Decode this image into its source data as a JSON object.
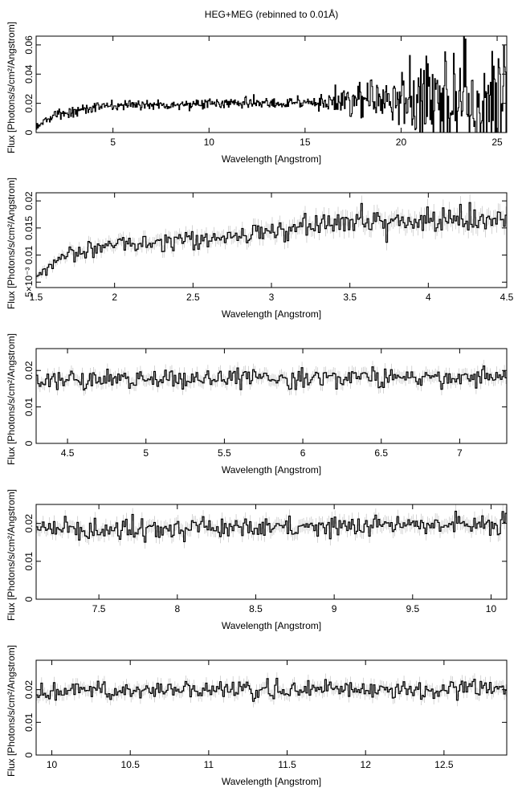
{
  "title": "HEG+MEG (rebinned to 0.01Å)",
  "chart_data": [
    {
      "type": "line",
      "xlabel": "Wavelength [Angstrom]",
      "ylabel": "Flux [Photons/s/cm²/Angstrom]",
      "xlim": [
        1.0,
        25.5
      ],
      "ylim": [
        0,
        0.066
      ],
      "xticks": [
        "5",
        "10",
        "15",
        "20",
        "25"
      ],
      "yticks": [
        "0",
        "0.02",
        "0.04",
        "0.06"
      ],
      "series": [
        {
          "x": [
            1.0,
            1.5,
            2.0,
            2.5,
            3,
            4,
            5,
            6,
            8,
            10,
            12,
            14,
            16,
            18,
            20,
            22,
            24,
            25.5
          ],
          "values": [
            0.005,
            0.008,
            0.012,
            0.013,
            0.015,
            0.017,
            0.018,
            0.019,
            0.019,
            0.02,
            0.02,
            0.02,
            0.021,
            0.022,
            0.022,
            0.022,
            0.023,
            0.023
          ]
        }
      ]
    },
    {
      "type": "line",
      "xlabel": "Wavelength [Angstrom]",
      "ylabel": "Flux [Photons/s/cm²/Angstrom]",
      "xlim": [
        1.5,
        4.5
      ],
      "ylim": [
        0.004,
        0.0215
      ],
      "xticks": [
        "1.5",
        "2",
        "2.5",
        "3",
        "3.5",
        "4",
        "4.5"
      ],
      "yticks": [
        "5×10⁻³",
        "0.01",
        "0.015",
        "0.02"
      ],
      "series": [
        {
          "x": [
            1.5,
            1.6,
            1.7,
            1.8,
            2.0,
            2.25,
            2.5,
            2.75,
            3.0,
            3.25,
            3.5,
            3.75,
            4.0,
            4.25,
            4.5
          ],
          "values": [
            0.006,
            0.008,
            0.01,
            0.011,
            0.012,
            0.0125,
            0.013,
            0.0135,
            0.0145,
            0.0155,
            0.016,
            0.0162,
            0.0165,
            0.017,
            0.0175
          ]
        }
      ]
    },
    {
      "type": "line",
      "xlabel": "Wavelength [Angstrom]",
      "ylabel": "Flux [Photons/s/cm²/Angstrom]",
      "xlim": [
        4.3,
        7.3
      ],
      "ylim": [
        0,
        0.026
      ],
      "xticks": [
        "4.5",
        "5",
        "5.5",
        "6",
        "6.5",
        "7"
      ],
      "yticks": [
        "0",
        "0.01",
        "0.02"
      ],
      "series": [
        {
          "x": [
            4.3,
            4.8,
            5.3,
            5.8,
            6.3,
            6.8,
            7.3
          ],
          "values": [
            0.017,
            0.0175,
            0.018,
            0.018,
            0.018,
            0.0182,
            0.0183
          ]
        }
      ]
    },
    {
      "type": "line",
      "xlabel": "Wavelength [Angstrom]",
      "ylabel": "Flux [Photons/s/cm²/Angstrom]",
      "xlim": [
        7.1,
        10.1
      ],
      "ylim": [
        0,
        0.025
      ],
      "xticks": [
        "7.5",
        "8",
        "8.5",
        "9",
        "9.5",
        "10"
      ],
      "yticks": [
        "0",
        "0.01",
        "0.02"
      ],
      "series": [
        {
          "x": [
            7.1,
            7.6,
            8.1,
            8.6,
            9.1,
            9.6,
            10.1
          ],
          "values": [
            0.018,
            0.0185,
            0.019,
            0.019,
            0.0195,
            0.0195,
            0.0198
          ]
        }
      ]
    },
    {
      "type": "line",
      "xlabel": "Wavelength [Angstrom]",
      "ylabel": "Flux [Photons/s/cm²/Angstrom]",
      "xlim": [
        9.9,
        12.9
      ],
      "ylim": [
        0,
        0.029
      ],
      "xticks": [
        "10",
        "10.5",
        "11",
        "11.5",
        "12",
        "12.5"
      ],
      "yticks": [
        "0",
        "0.01",
        "0.02"
      ],
      "series": [
        {
          "x": [
            9.9,
            10.4,
            10.9,
            11.4,
            11.9,
            12.4,
            12.9
          ],
          "values": [
            0.0195,
            0.0197,
            0.02,
            0.02,
            0.0202,
            0.0203,
            0.0203
          ]
        }
      ]
    }
  ]
}
